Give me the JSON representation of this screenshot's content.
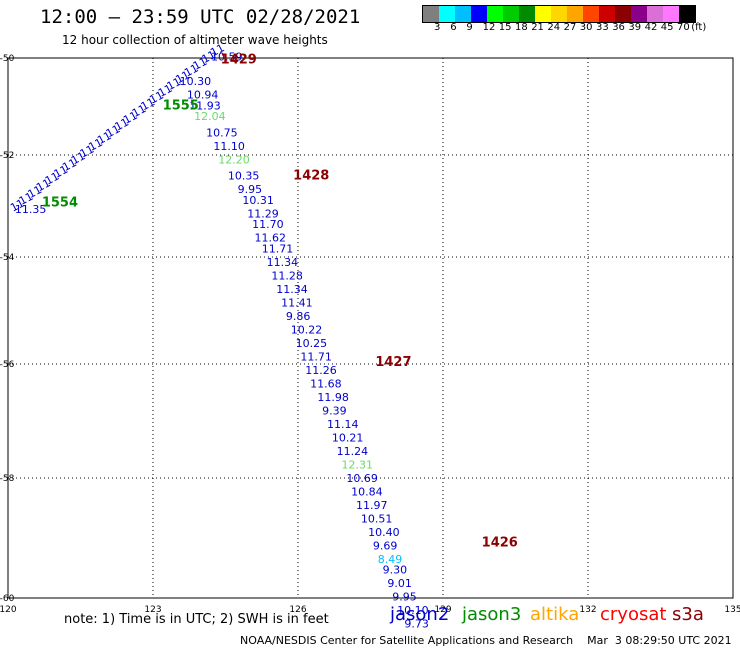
{
  "header": {
    "title": "12:00 – 23:59 UTC 02/28/2021",
    "subtitle": "12 hour collection of altimeter wave heights"
  },
  "color_scale": {
    "unit": "(ft)",
    "swatches": [
      "#7f7f7f",
      "#00ffff",
      "#00bfff",
      "#0000ff",
      "#00ff00",
      "#00cd00",
      "#008b00",
      "#ffff00",
      "#ffd700",
      "#ffa500",
      "#ff4500",
      "#cd0000",
      "#8b0000",
      "#8b008b",
      "#da70d6",
      "#ff77ff",
      "#000000"
    ],
    "labels": [
      "3",
      "6",
      "9",
      "12",
      "15",
      "18",
      "21",
      "24",
      "27",
      "30",
      "33",
      "36",
      "39",
      "42",
      "45",
      "70"
    ]
  },
  "map": {
    "x_ticks": [
      "120",
      "123",
      "126",
      "129",
      "132",
      "135"
    ],
    "y_ticks": [
      "-50",
      "-52",
      "-54",
      "-56",
      "-58",
      "-60"
    ],
    "gridlines": true
  },
  "track_labels": [
    {
      "text": "1429",
      "lon": 124.4,
      "lat": -50.1
    },
    {
      "text": "1428",
      "lon": 125.9,
      "lat": -52.25
    },
    {
      "text": "1427",
      "lon": 127.6,
      "lat": -55.7
    },
    {
      "text": "1426",
      "lon": 129.8,
      "lat": -59.05
    },
    {
      "text": "1555",
      "lon": 123.2,
      "lat": -50.95
    },
    {
      "text": "1554",
      "lon": 120.7,
      "lat": -52.75
    }
  ],
  "observations": {
    "jason2_descending": [
      {
        "v": "10.59",
        "lon": 124.2,
        "lat": -50.05
      },
      {
        "v": "10.30",
        "lon": 123.55,
        "lat": -50.5
      },
      {
        "v": "10.94",
        "lon": 123.7,
        "lat": -50.75
      },
      {
        "v": "11.93",
        "lon": 123.75,
        "lat": -50.95
      },
      {
        "v": "12.04",
        "lon": 123.85,
        "lat": -51.15
      },
      {
        "v": "10.75",
        "lon": 124.1,
        "lat": -51.45
      },
      {
        "v": "11.10",
        "lon": 124.25,
        "lat": -51.7
      },
      {
        "v": "12.20",
        "lon": 124.35,
        "lat": -51.95
      },
      {
        "v": "10.35",
        "lon": 124.55,
        "lat": -52.25
      },
      {
        "v": "9.95",
        "lon": 124.75,
        "lat": -52.5
      },
      {
        "v": "10.31",
        "lon": 124.85,
        "lat": -52.7
      },
      {
        "v": "11.29",
        "lon": 124.95,
        "lat": -52.95
      },
      {
        "v": "11.70",
        "lon": 125.05,
        "lat": -53.15
      },
      {
        "v": "11.62",
        "lon": 125.1,
        "lat": -53.4
      },
      {
        "v": "11.71",
        "lon": 125.25,
        "lat": -53.6
      },
      {
        "v": "11.34",
        "lon": 125.35,
        "lat": -53.85
      },
      {
        "v": "11.28",
        "lon": 125.45,
        "lat": -54.1
      },
      {
        "v": "11.34",
        "lon": 125.55,
        "lat": -54.35
      },
      {
        "v": "11.41",
        "lon": 125.65,
        "lat": -54.6
      },
      {
        "v": "9.86",
        "lon": 125.75,
        "lat": -54.85
      },
      {
        "v": "10.22",
        "lon": 125.85,
        "lat": -55.1
      },
      {
        "v": "10.25",
        "lon": 125.95,
        "lat": -55.35
      },
      {
        "v": "11.71",
        "lon": 126.05,
        "lat": -55.6
      },
      {
        "v": "11.26",
        "lon": 126.15,
        "lat": -55.85
      },
      {
        "v": "11.68",
        "lon": 126.25,
        "lat": -56.1
      },
      {
        "v": "11.98",
        "lon": 126.4,
        "lat": -56.35
      },
      {
        "v": "9.39",
        "lon": 126.5,
        "lat": -56.6
      },
      {
        "v": "11.14",
        "lon": 126.6,
        "lat": -56.85
      },
      {
        "v": "10.21",
        "lon": 126.7,
        "lat": -57.1
      },
      {
        "v": "11.24",
        "lon": 126.8,
        "lat": -57.35
      },
      {
        "v": "12.31",
        "lon": 126.9,
        "lat": -57.6
      },
      {
        "v": "10.69",
        "lon": 127.0,
        "lat": -57.85
      },
      {
        "v": "10.84",
        "lon": 127.1,
        "lat": -58.1
      },
      {
        "v": "11.97",
        "lon": 127.2,
        "lat": -58.35
      },
      {
        "v": "10.51",
        "lon": 127.3,
        "lat": -58.6
      },
      {
        "v": "10.40",
        "lon": 127.45,
        "lat": -58.85
      },
      {
        "v": "9.69",
        "lon": 127.55,
        "lat": -59.1
      },
      {
        "v": "8.49",
        "lon": 127.65,
        "lat": -59.35
      },
      {
        "v": "9.30",
        "lon": 127.75,
        "lat": -59.55
      },
      {
        "v": "9.01",
        "lon": 127.85,
        "lat": -59.8
      },
      {
        "v": "9.95",
        "lon": 127.95,
        "lat": -60.05
      },
      {
        "v": "10.10",
        "lon": 128.05,
        "lat": -60.3
      },
      {
        "v": "9.73",
        "lon": 128.2,
        "lat": -60.55
      }
    ],
    "jason2_ascending_start": {
      "v": "11.35",
      "lon": 120.1,
      "lat": -52.8
    }
  },
  "legend": {
    "note": "note:  1) Time is in UTC;  2) SWH is in feet",
    "satellites": [
      {
        "name": "jason2",
        "color": "#0000cc"
      },
      {
        "name": "jason3",
        "color": "#008b00"
      },
      {
        "name": "altika",
        "color": "#ffa500"
      },
      {
        "name": "cryosat",
        "color": "#ff0000"
      },
      {
        "name": "s3a",
        "color": "#8b0000"
      }
    ]
  },
  "credit": "NOAA/NESDIS Center for Satellite Applications and Research    Mar  3 08:29:50 UTC 2021"
}
